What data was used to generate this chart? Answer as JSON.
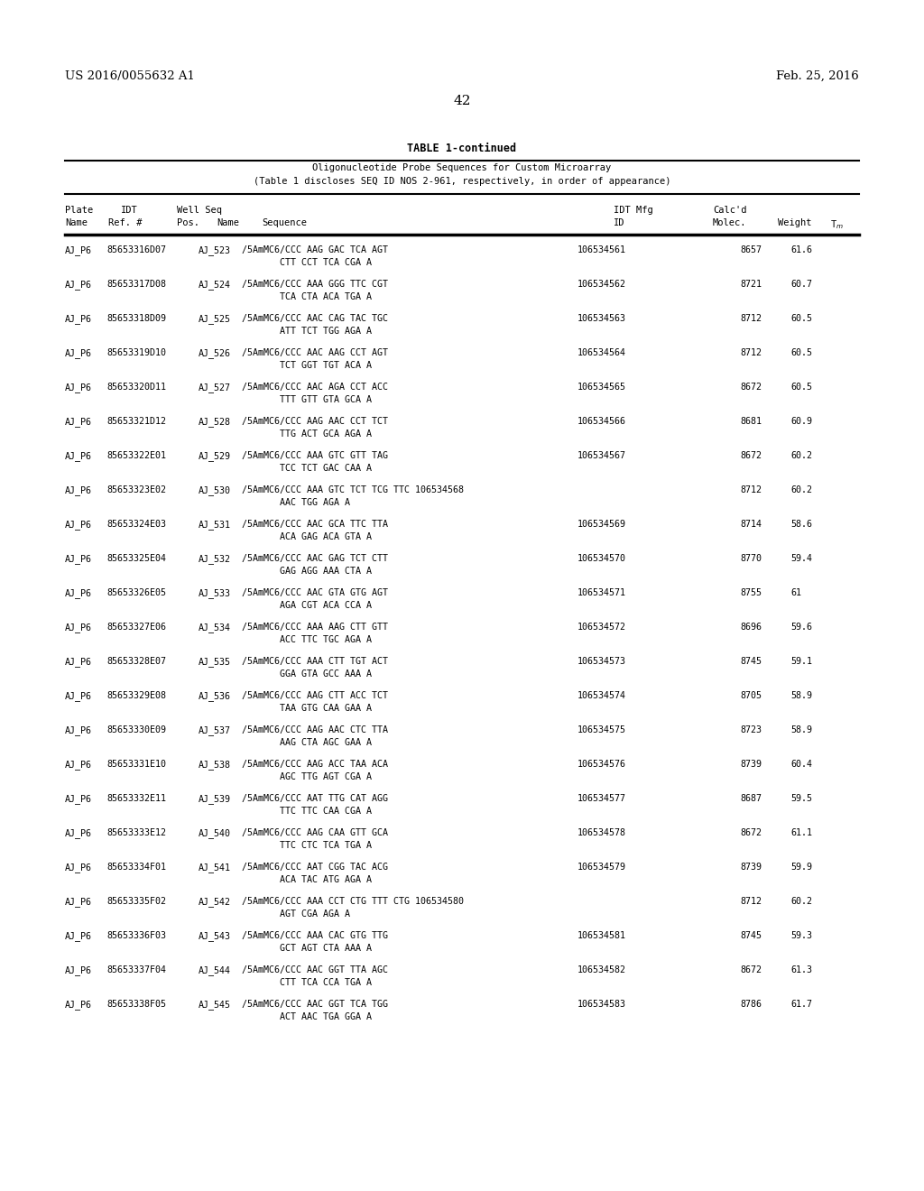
{
  "patent_left": "US 2016/0055632 A1",
  "patent_right": "Feb. 25, 2016",
  "page_number": "42",
  "table_title": "TABLE 1-continued",
  "table_subtitle1": "Oligonucleotide Probe Sequences for Custom Microarray",
  "table_subtitle2": "(Table 1 discloses SEQ ID NOS 2-961, respectively, in order of appearance)",
  "rows_data": [
    {
      "plate": "AJ_P6",
      "idt_ref": "85653316D07",
      "seq_name": "AJ_523",
      "seq1": "/5AmMC6/CCC AAG GAC TCA AGT",
      "seq2": "CTT CCT TCA CGA A",
      "idt_id": "106534561",
      "mw": "8657",
      "tm": "61.6",
      "special": false
    },
    {
      "plate": "AJ_P6",
      "idt_ref": "85653317D08",
      "seq_name": "AJ_524",
      "seq1": "/5AmMC6/CCC AAA GGG TTC CGT",
      "seq2": "TCA CTA ACA TGA A",
      "idt_id": "106534562",
      "mw": "8721",
      "tm": "60.7",
      "special": false
    },
    {
      "plate": "AJ_P6",
      "idt_ref": "85653318D09",
      "seq_name": "AJ_525",
      "seq1": "/5AmMC6/CCC AAC CAG TAC TGC",
      "seq2": "ATT TCT TGG AGA A",
      "idt_id": "106534563",
      "mw": "8712",
      "tm": "60.5",
      "special": false
    },
    {
      "plate": "AJ_P6",
      "idt_ref": "85653319D10",
      "seq_name": "AJ_526",
      "seq1": "/5AmMC6/CCC AAC AAG CCT AGT",
      "seq2": "TCT GGT TGT ACA A",
      "idt_id": "106534564",
      "mw": "8712",
      "tm": "60.5",
      "special": false
    },
    {
      "plate": "AJ_P6",
      "idt_ref": "85653320D11",
      "seq_name": "AJ_527",
      "seq1": "/5AmMC6/CCC AAC AGA CCT ACC",
      "seq2": "TTT GTT GTA GCA A",
      "idt_id": "106534565",
      "mw": "8672",
      "tm": "60.5",
      "special": false
    },
    {
      "plate": "AJ_P6",
      "idt_ref": "85653321D12",
      "seq_name": "AJ_528",
      "seq1": "/5AmMC6/CCC AAG AAC CCT TCT",
      "seq2": "TTG ACT GCA AGA A",
      "idt_id": "106534566",
      "mw": "8681",
      "tm": "60.9",
      "special": false
    },
    {
      "plate": "AJ_P6",
      "idt_ref": "85653322E01",
      "seq_name": "AJ_529",
      "seq1": "/5AmMC6/CCC AAA GTC GTT TAG",
      "seq2": "TCC TCT GAC CAA A",
      "idt_id": "106534567",
      "mw": "8672",
      "tm": "60.2",
      "special": false
    },
    {
      "plate": "AJ_P6",
      "idt_ref": "85653323E02",
      "seq_name": "AJ_530",
      "seq1": "/5AmMC6/CCC AAA GTC TCT TCG TTC 106534568",
      "seq2": "AAC TGG AGA A",
      "idt_id": "",
      "mw": "8712",
      "tm": "60.2",
      "special": true
    },
    {
      "plate": "AJ_P6",
      "idt_ref": "85653324E03",
      "seq_name": "AJ_531",
      "seq1": "/5AmMC6/CCC AAC GCA TTC TTA",
      "seq2": "ACA GAG ACA GTA A",
      "idt_id": "106534569",
      "mw": "8714",
      "tm": "58.6",
      "special": false
    },
    {
      "plate": "AJ_P6",
      "idt_ref": "85653325E04",
      "seq_name": "AJ_532",
      "seq1": "/5AmMC6/CCC AAC GAG TCT CTT",
      "seq2": "GAG AGG AAA CTA A",
      "idt_id": "106534570",
      "mw": "8770",
      "tm": "59.4",
      "special": false
    },
    {
      "plate": "AJ_P6",
      "idt_ref": "85653326E05",
      "seq_name": "AJ_533",
      "seq1": "/5AmMC6/CCC AAC GTA GTG AGT",
      "seq2": "AGA CGT ACA CCA A",
      "idt_id": "106534571",
      "mw": "8755",
      "tm": "61",
      "special": false
    },
    {
      "plate": "AJ_P6",
      "idt_ref": "85653327E06",
      "seq_name": "AJ_534",
      "seq1": "/5AmMC6/CCC AAA AAG CTT GTT",
      "seq2": "ACC TTC TGC AGA A",
      "idt_id": "106534572",
      "mw": "8696",
      "tm": "59.6",
      "special": false
    },
    {
      "plate": "AJ_P6",
      "idt_ref": "85653328E07",
      "seq_name": "AJ_535",
      "seq1": "/5AmMC6/CCC AAA CTT TGT ACT",
      "seq2": "GGA GTA GCC AAA A",
      "idt_id": "106534573",
      "mw": "8745",
      "tm": "59.1",
      "special": false
    },
    {
      "plate": "AJ_P6",
      "idt_ref": "85653329E08",
      "seq_name": "AJ_536",
      "seq1": "/5AmMC6/CCC AAG CTT ACC TCT",
      "seq2": "TAA GTG CAA GAA A",
      "idt_id": "106534574",
      "mw": "8705",
      "tm": "58.9",
      "special": false
    },
    {
      "plate": "AJ_P6",
      "idt_ref": "85653330E09",
      "seq_name": "AJ_537",
      "seq1": "/5AmMC6/CCC AAG AAC CTC TTA",
      "seq2": "AAG CTA AGC GAA A",
      "idt_id": "106534575",
      "mw": "8723",
      "tm": "58.9",
      "special": false
    },
    {
      "plate": "AJ_P6",
      "idt_ref": "85653331E10",
      "seq_name": "AJ_538",
      "seq1": "/5AmMC6/CCC AAG ACC TAA ACA",
      "seq2": "AGC TTG AGT CGA A",
      "idt_id": "106534576",
      "mw": "8739",
      "tm": "60.4",
      "special": false
    },
    {
      "plate": "AJ_P6",
      "idt_ref": "85653332E11",
      "seq_name": "AJ_539",
      "seq1": "/5AmMC6/CCC AAT TTG CAT AGG",
      "seq2": "TTC TTC CAA CGA A",
      "idt_id": "106534577",
      "mw": "8687",
      "tm": "59.5",
      "special": false
    },
    {
      "plate": "AJ_P6",
      "idt_ref": "85653333E12",
      "seq_name": "AJ_540",
      "seq1": "/5AmMC6/CCC AAG CAA GTT GCA",
      "seq2": "TTC CTC TCA TGA A",
      "idt_id": "106534578",
      "mw": "8672",
      "tm": "61.1",
      "special": false
    },
    {
      "plate": "AJ_P6",
      "idt_ref": "85653334F01",
      "seq_name": "AJ_541",
      "seq1": "/5AmMC6/CCC AAT CGG TAC ACG",
      "seq2": "ACA TAC ATG AGA A",
      "idt_id": "106534579",
      "mw": "8739",
      "tm": "59.9",
      "special": false
    },
    {
      "plate": "AJ_P6",
      "idt_ref": "85653335F02",
      "seq_name": "AJ_542",
      "seq1": "/5AmMC6/CCC AAA CCT CTG TTT CTG 106534580",
      "seq2": "AGT CGA AGA A",
      "idt_id": "",
      "mw": "8712",
      "tm": "60.2",
      "special": true
    },
    {
      "plate": "AJ_P6",
      "idt_ref": "85653336F03",
      "seq_name": "AJ_543",
      "seq1": "/5AmMC6/CCC AAA CAC GTG TTG",
      "seq2": "GCT AGT CTA AAA A",
      "idt_id": "106534581",
      "mw": "8745",
      "tm": "59.3",
      "special": false
    },
    {
      "plate": "AJ_P6",
      "idt_ref": "85653337F04",
      "seq_name": "AJ_544",
      "seq1": "/5AmMC6/CCC AAC GGT TTA AGC",
      "seq2": "CTT TCA CCA TGA A",
      "idt_id": "106534582",
      "mw": "8672",
      "tm": "61.3",
      "special": false
    },
    {
      "plate": "AJ_P6",
      "idt_ref": "85653338F05",
      "seq_name": "AJ_545",
      "seq1": "/5AmMC6/CCC AAC GGT TCA TGG",
      "seq2": "ACT AAC TGA GGA A",
      "idt_id": "106534583",
      "mw": "8786",
      "tm": "61.7",
      "special": false
    }
  ]
}
